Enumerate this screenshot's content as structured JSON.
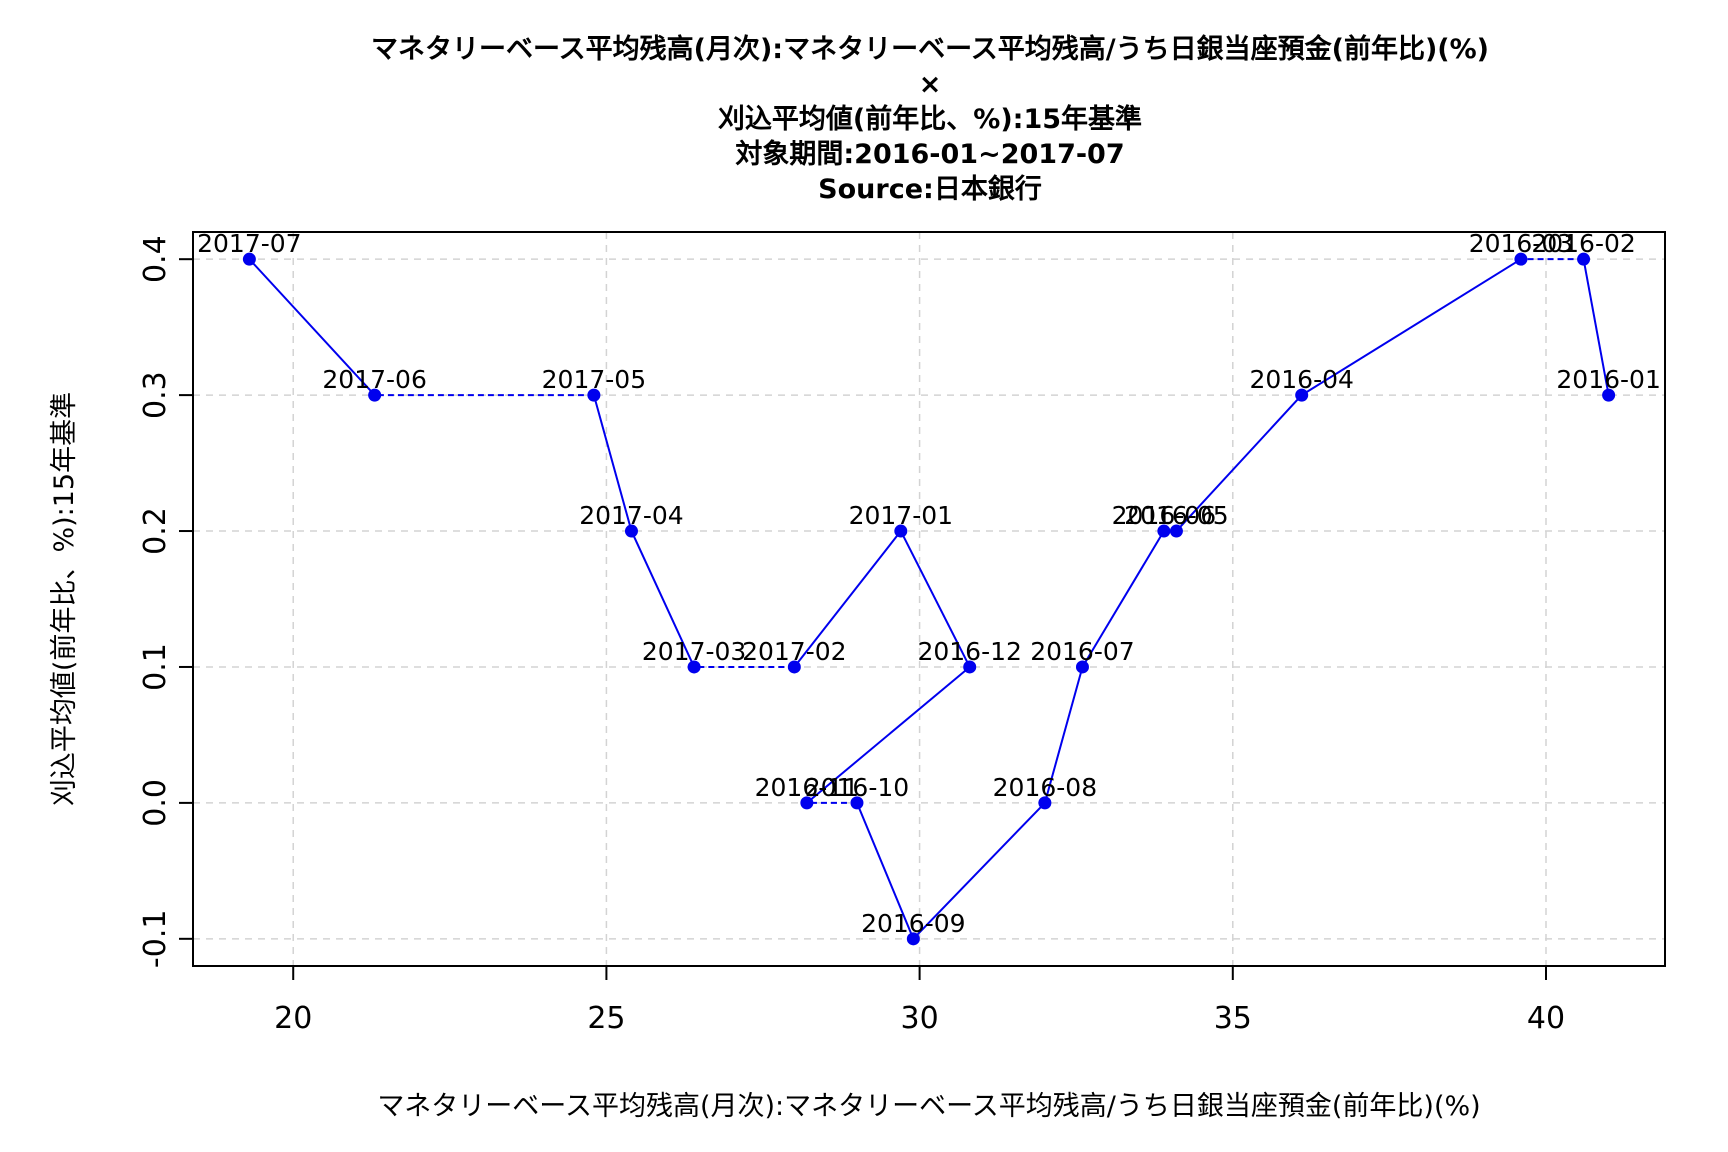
{
  "chart_data": {
    "type": "scatter",
    "title_lines": [
      "マネタリーベース平均残高(月次):マネタリーベース平均残高/うち日銀当座預金(前年比)(%)",
      "×",
      "刈込平均値(前年比、%):15年基準",
      "対象期間:2016-01~2017-07",
      "Source:日本銀行"
    ],
    "xlabel": "マネタリーベース平均残高(月次):マネタリーベース平均残高/うち日銀当座預金(前年比)(%)",
    "ylabel": "刈込平均値(前年比、%):15年基準",
    "xlim": [
      18.4,
      41.9
    ],
    "ylim": [
      -0.12,
      0.42
    ],
    "x_ticks": [
      20,
      25,
      30,
      35,
      40
    ],
    "y_ticks": [
      -0.1,
      0.0,
      0.1,
      0.2,
      0.3,
      0.4
    ],
    "y_tick_labels": [
      "-0.1",
      "0.0",
      "0.1",
      "0.2",
      "0.3",
      "0.4"
    ],
    "grid": true,
    "colors": {
      "series": "#0000ee",
      "grid": "#d3d3d3"
    },
    "points": [
      {
        "label": "2016-01",
        "x": 41.0,
        "y": 0.3
      },
      {
        "label": "2016-02",
        "x": 40.6,
        "y": 0.4
      },
      {
        "label": "2016-03",
        "x": 39.6,
        "y": 0.4
      },
      {
        "label": "2016-04",
        "x": 36.1,
        "y": 0.3
      },
      {
        "label": "2016-05",
        "x": 34.1,
        "y": 0.2
      },
      {
        "label": "2016-06",
        "x": 33.9,
        "y": 0.2
      },
      {
        "label": "2016-07",
        "x": 32.6,
        "y": 0.1
      },
      {
        "label": "2016-08",
        "x": 32.0,
        "y": 0.0
      },
      {
        "label": "2016-09",
        "x": 29.9,
        "y": -0.1
      },
      {
        "label": "2016-10",
        "x": 29.0,
        "y": 0.0
      },
      {
        "label": "2016-11",
        "x": 28.2,
        "y": 0.0
      },
      {
        "label": "2016-12",
        "x": 30.8,
        "y": 0.1
      },
      {
        "label": "2017-01",
        "x": 29.7,
        "y": 0.2
      },
      {
        "label": "2017-02",
        "x": 28.0,
        "y": 0.1
      },
      {
        "label": "2017-03",
        "x": 26.4,
        "y": 0.1
      },
      {
        "label": "2017-04",
        "x": 25.4,
        "y": 0.2
      },
      {
        "label": "2017-05",
        "x": 24.8,
        "y": 0.3
      },
      {
        "label": "2017-06",
        "x": 21.3,
        "y": 0.3
      },
      {
        "label": "2017-07",
        "x": 19.3,
        "y": 0.4
      }
    ]
  }
}
